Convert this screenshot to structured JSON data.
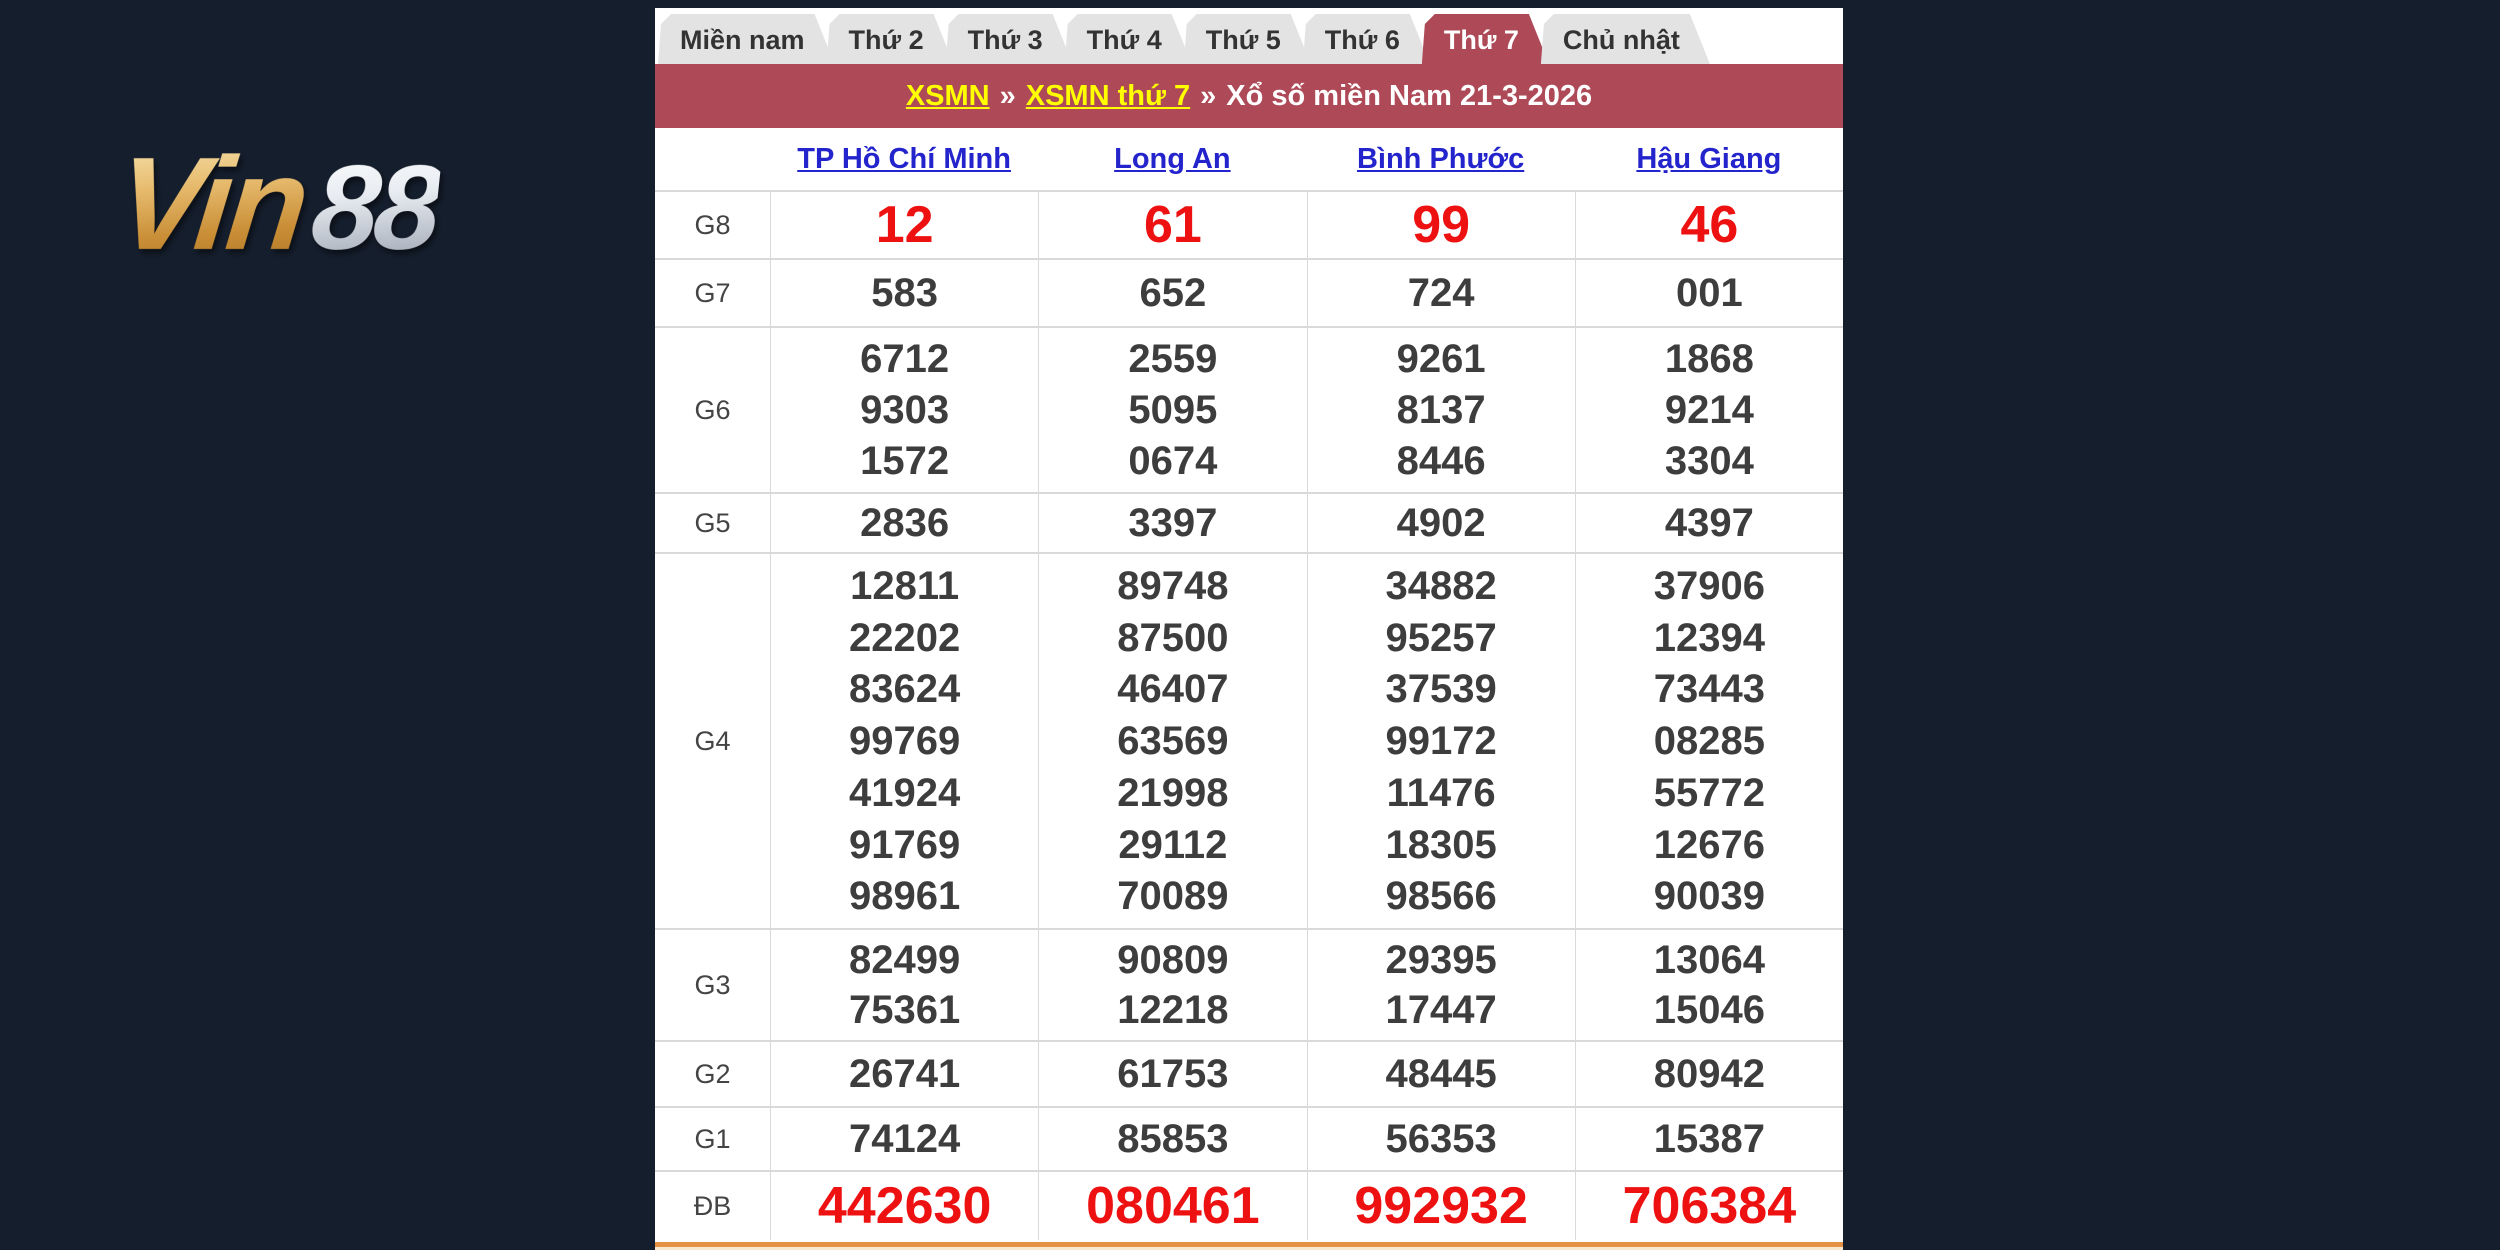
{
  "brand": {
    "logo_gold": "Vin",
    "logo_silver": "88"
  },
  "tabs": [
    {
      "label": "Miền nam",
      "active": false
    },
    {
      "label": "Thứ 2",
      "active": false
    },
    {
      "label": "Thứ 3",
      "active": false
    },
    {
      "label": "Thứ 4",
      "active": false
    },
    {
      "label": "Thứ 5",
      "active": false
    },
    {
      "label": "Thứ 6",
      "active": false
    },
    {
      "label": "Thứ 7",
      "active": true
    },
    {
      "label": "Chủ nhật",
      "active": false
    }
  ],
  "breadcrumb": {
    "link1": "XSMN",
    "sep": "»",
    "link2": "XSMN thứ 7",
    "current": "Xổ số miền Nam 21-3-2026"
  },
  "columns": [
    "TP Hồ Chí Minh",
    "Long An",
    "Bình Phước",
    "Hậu Giang"
  ],
  "prizes": [
    {
      "label": "G8",
      "highlight": true,
      "values": [
        [
          "12"
        ],
        [
          "61"
        ],
        [
          "99"
        ],
        [
          "46"
        ]
      ]
    },
    {
      "label": "G7",
      "highlight": false,
      "values": [
        [
          "583"
        ],
        [
          "652"
        ],
        [
          "724"
        ],
        [
          "001"
        ]
      ]
    },
    {
      "label": "G6",
      "highlight": false,
      "values": [
        [
          "6712",
          "9303",
          "1572"
        ],
        [
          "2559",
          "5095",
          "0674"
        ],
        [
          "9261",
          "8137",
          "8446"
        ],
        [
          "1868",
          "9214",
          "3304"
        ]
      ]
    },
    {
      "label": "G5",
      "highlight": false,
      "values": [
        [
          "2836"
        ],
        [
          "3397"
        ],
        [
          "4902"
        ],
        [
          "4397"
        ]
      ]
    },
    {
      "label": "G4",
      "highlight": false,
      "values": [
        [
          "12811",
          "22202",
          "83624",
          "99769",
          "41924",
          "91769",
          "98961"
        ],
        [
          "89748",
          "87500",
          "46407",
          "63569",
          "21998",
          "29112",
          "70089"
        ],
        [
          "34882",
          "95257",
          "37539",
          "99172",
          "11476",
          "18305",
          "98566"
        ],
        [
          "37906",
          "12394",
          "73443",
          "08285",
          "55772",
          "12676",
          "90039"
        ]
      ]
    },
    {
      "label": "G3",
      "highlight": false,
      "values": [
        [
          "82499",
          "75361"
        ],
        [
          "90809",
          "12218"
        ],
        [
          "29395",
          "17447"
        ],
        [
          "13064",
          "15046"
        ]
      ]
    },
    {
      "label": "G2",
      "highlight": false,
      "values": [
        [
          "26741"
        ],
        [
          "61753"
        ],
        [
          "48445"
        ],
        [
          "80942"
        ]
      ]
    },
    {
      "label": "G1",
      "highlight": false,
      "values": [
        [
          "74124"
        ],
        [
          "85853"
        ],
        [
          "56353"
        ],
        [
          "15387"
        ]
      ]
    },
    {
      "label": "ĐB",
      "highlight": true,
      "values": [
        [
          "442630"
        ],
        [
          "080461"
        ],
        [
          "992932"
        ],
        [
          "706384"
        ]
      ]
    }
  ],
  "colors": {
    "navy": "#151e2d",
    "maroon": "#ae4a57",
    "red": "#ee1111",
    "blue": "#2424cc",
    "yellow": "#ffff00",
    "tabgray": "#e3e3e3",
    "orange": "#e59042",
    "numgray": "#3d3d3d"
  }
}
